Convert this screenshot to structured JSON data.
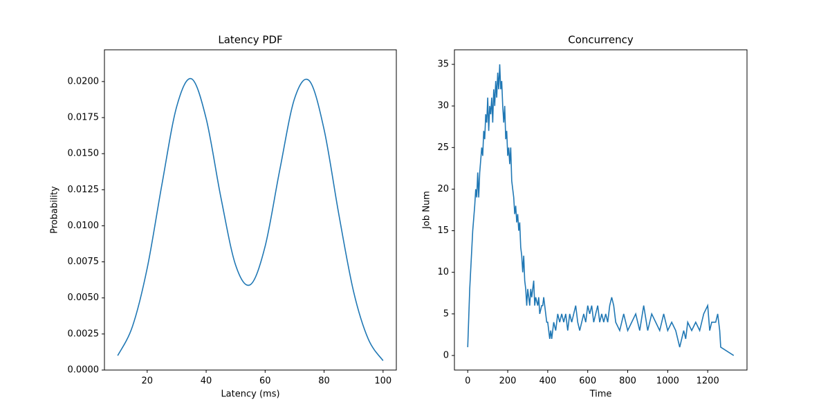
{
  "chart_data": [
    {
      "type": "line",
      "title": "Latency PDF",
      "xlabel": "Latency (ms)",
      "ylabel": "Probability",
      "x": [
        10,
        15,
        20,
        25,
        30,
        35,
        40,
        45,
        50,
        55,
        60,
        65,
        70,
        75,
        80,
        85,
        90,
        95,
        100
      ],
      "series": [
        {
          "name": null,
          "color": "#1f77b4",
          "values": [
            0.001,
            0.00302,
            0.00706,
            0.01287,
            0.01826,
            0.02019,
            0.01743,
            0.01196,
            0.00727,
            0.00592,
            0.00858,
            0.01391,
            0.01883,
            0.02005,
            0.01667,
            0.01079,
            0.00544,
            0.00214,
            0.00065
          ]
        }
      ],
      "xlim": [
        5.5,
        104.5
      ],
      "xticks": [
        20,
        40,
        60,
        80,
        100
      ],
      "ylim": [
        0,
        0.0222
      ],
      "yticks": [
        {
          "value": 0,
          "label": "0.0000"
        },
        {
          "value": 0.0025,
          "label": "0.0025"
        },
        {
          "value": 0.005,
          "label": "0.0050"
        },
        {
          "value": 0.0075,
          "label": "0.0075"
        },
        {
          "value": 0.01,
          "label": "0.0100"
        },
        {
          "value": 0.0125,
          "label": "0.0125"
        },
        {
          "value": 0.015,
          "label": "0.0150"
        },
        {
          "value": 0.0175,
          "label": "0.0175"
        },
        {
          "value": 0.02,
          "label": "0.0200"
        }
      ],
      "smooth": true
    },
    {
      "type": "line",
      "title": "Concurrency",
      "xlabel": "Time",
      "ylabel": "Job Num",
      "x": [
        0,
        10,
        25,
        35,
        40,
        45,
        50,
        55,
        60,
        70,
        75,
        80,
        85,
        90,
        95,
        100,
        105,
        110,
        115,
        120,
        125,
        130,
        135,
        140,
        145,
        150,
        155,
        160,
        165,
        170,
        175,
        180,
        185,
        190,
        195,
        200,
        205,
        210,
        215,
        220,
        225,
        230,
        235,
        240,
        245,
        250,
        255,
        260,
        265,
        270,
        275,
        280,
        285,
        290,
        295,
        300,
        305,
        310,
        315,
        320,
        330,
        335,
        340,
        350,
        355,
        360,
        370,
        375,
        380,
        390,
        395,
        400,
        405,
        410,
        415,
        420,
        430,
        440,
        450,
        460,
        470,
        480,
        490,
        500,
        510,
        520,
        530,
        540,
        550,
        560,
        570,
        580,
        590,
        600,
        610,
        620,
        630,
        640,
        650,
        660,
        670,
        680,
        690,
        700,
        710,
        720,
        730,
        740,
        760,
        780,
        800,
        820,
        840,
        860,
        880,
        900,
        920,
        940,
        960,
        980,
        1000,
        1020,
        1040,
        1060,
        1070,
        1080,
        1090,
        1100,
        1120,
        1140,
        1160,
        1180,
        1200,
        1210,
        1220,
        1240,
        1250,
        1260,
        1265,
        1330
      ],
      "series": [
        {
          "name": null,
          "color": "#1f77b4",
          "values": [
            1,
            8,
            15,
            18,
            20,
            19,
            22,
            19,
            22,
            25,
            24,
            27,
            26,
            29,
            28,
            31,
            27,
            30,
            29,
            31,
            28,
            32,
            30,
            33,
            31,
            34,
            32,
            35,
            32,
            33,
            30,
            28,
            30,
            26,
            27,
            24,
            25,
            23,
            25,
            21,
            20,
            19,
            17,
            18,
            16,
            17,
            15,
            16,
            13,
            12,
            10,
            12,
            9,
            8,
            6,
            8,
            7,
            6,
            8,
            7,
            9,
            6,
            7,
            6,
            7,
            5,
            6,
            6,
            7,
            5,
            4,
            4,
            3,
            2,
            3,
            2,
            4,
            3,
            5,
            4,
            5,
            4,
            5,
            3,
            5,
            4,
            5,
            6,
            4,
            3,
            4,
            5,
            4,
            6,
            5,
            6,
            4,
            5,
            6,
            4,
            5,
            4,
            5,
            4,
            6,
            7,
            6,
            4,
            3,
            5,
            3,
            4,
            5,
            3,
            6,
            3,
            5,
            4,
            3,
            5,
            3,
            4,
            3,
            1,
            2,
            3,
            2,
            4,
            3,
            4,
            3,
            5,
            6,
            3,
            4,
            4,
            5,
            3,
            1,
            0
          ]
        }
      ],
      "xlim": [
        -66.5,
        1396.5
      ],
      "xticks": [
        0,
        200,
        400,
        600,
        800,
        1000,
        1200
      ],
      "ylim": [
        -1.75,
        36.75
      ],
      "yticks": [
        0,
        5,
        10,
        15,
        20,
        25,
        30,
        35
      ],
      "smooth": false
    }
  ]
}
